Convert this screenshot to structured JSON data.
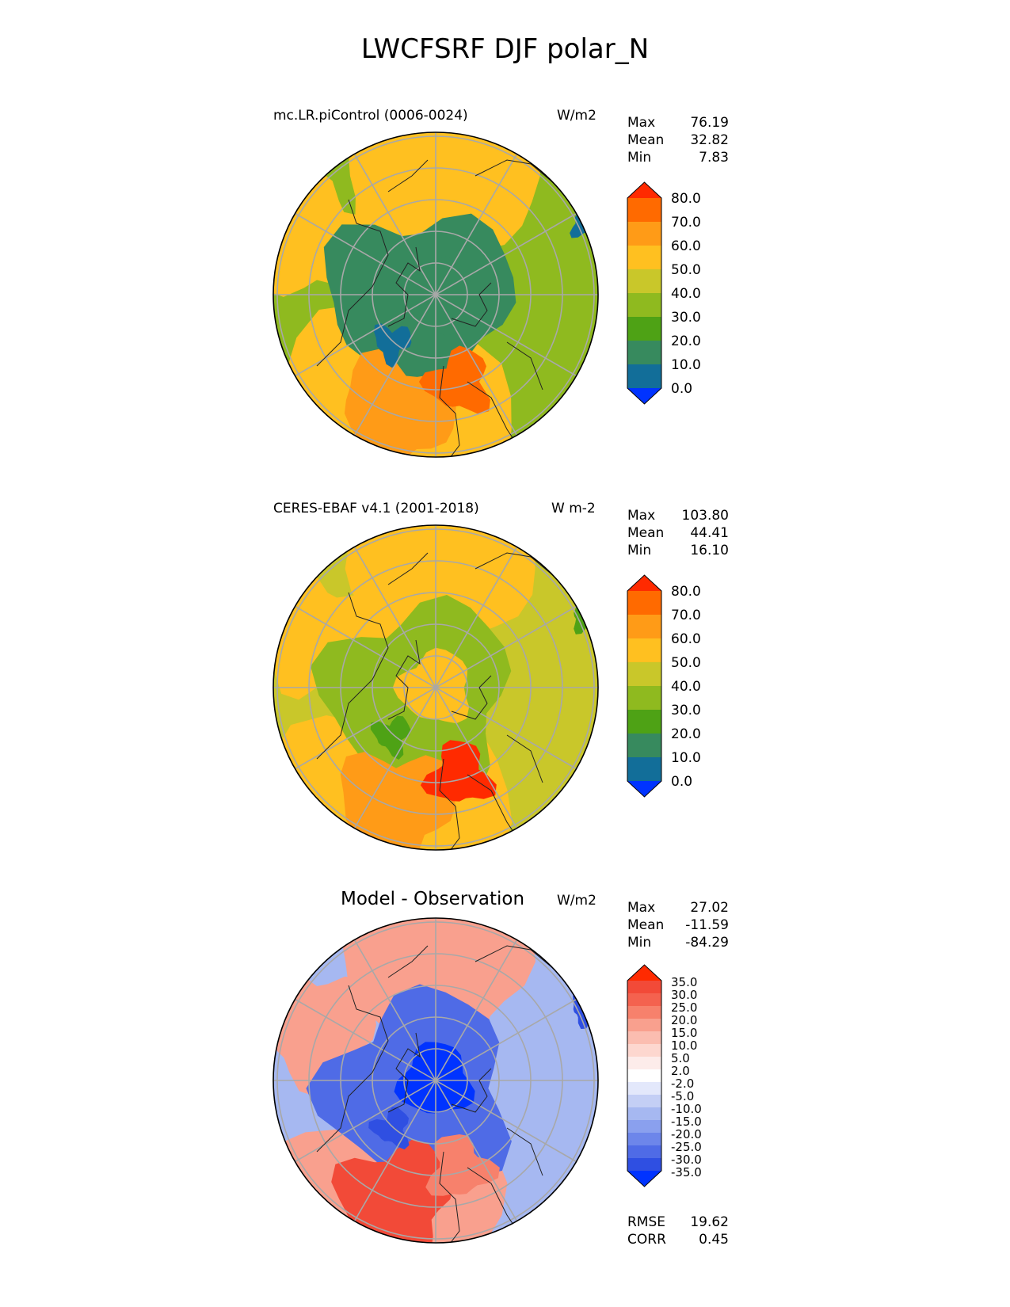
{
  "figure_title": "LWCFSRF DJF polar_N",
  "chart_data": [
    {
      "type": "polar-map",
      "title": "mc.LR.piControl (0006-0024)",
      "units": "W/m2",
      "stats": [
        {
          "label": "Max",
          "value": "76.19"
        },
        {
          "label": "Mean",
          "value": "32.82"
        },
        {
          "label": "Min",
          "value": "7.83"
        }
      ],
      "colorbar": {
        "levels": [
          "80.0",
          "70.0",
          "60.0",
          "50.0",
          "40.0",
          "30.0",
          "20.0",
          "10.0",
          "0.0"
        ],
        "colors": [
          "#ff2a00",
          "#ff6a00",
          "#ff9b17",
          "#ffc020",
          "#c9c72a",
          "#8fba1f",
          "#4ea215",
          "#378a5e",
          "#126e99",
          "#0033ff"
        ]
      },
      "regions": {
        "base": "#8fba1f",
        "outer": "#ffc020",
        "inner": "#378a5e",
        "core": "#378a5e",
        "warm": "#ff9b17",
        "accent": "#ff6a00",
        "cool": "#126e99"
      }
    },
    {
      "type": "polar-map",
      "title": "CERES-EBAF v4.1 (2001-2018)",
      "units": "W m-2",
      "stats": [
        {
          "label": "Max",
          "value": "103.80"
        },
        {
          "label": "Mean",
          "value": "44.41"
        },
        {
          "label": "Min",
          "value": "16.10"
        }
      ],
      "colorbar": {
        "levels": [
          "80.0",
          "70.0",
          "60.0",
          "50.0",
          "40.0",
          "30.0",
          "20.0",
          "10.0",
          "0.0"
        ],
        "colors": [
          "#ff2a00",
          "#ff6a00",
          "#ff9b17",
          "#ffc020",
          "#c9c72a",
          "#8fba1f",
          "#4ea215",
          "#378a5e",
          "#126e99",
          "#0033ff"
        ]
      },
      "regions": {
        "base": "#c9c72a",
        "outer": "#ffc020",
        "inner": "#8fba1f",
        "core": "#ffc020",
        "warm": "#ff9b17",
        "accent": "#ff2a00",
        "cool": "#4ea215"
      }
    },
    {
      "type": "polar-map",
      "title": "Model - Observation",
      "units": "W/m2",
      "stats": [
        {
          "label": "Max",
          "value": "27.02"
        },
        {
          "label": "Mean",
          "value": "-11.59"
        },
        {
          "label": "Min",
          "value": "-84.29"
        }
      ],
      "colorbar": {
        "levels": [
          "35.0",
          "30.0",
          "25.0",
          "20.0",
          "15.0",
          "10.0",
          "5.0",
          "2.0",
          "-2.0",
          "-5.0",
          "-10.0",
          "-15.0",
          "-20.0",
          "-25.0",
          "-30.0",
          "-35.0"
        ],
        "colors": [
          "#ff2a00",
          "#f24a38",
          "#f4624f",
          "#f7816c",
          "#f9a08e",
          "#fbbdb0",
          "#fdd7cf",
          "#fdecea",
          "#ffffff",
          "#e3e8fb",
          "#c4cff5",
          "#a6b8f1",
          "#8aa0ee",
          "#6d86ea",
          "#4f6be6",
          "#2f4fe2",
          "#0033ff"
        ]
      },
      "regions": {
        "base": "#a6b8f1",
        "outer": "#f9a08e",
        "inner": "#4f6be6",
        "core": "#0033ff",
        "warm": "#f24a38",
        "accent": "#f7816c",
        "cool": "#2f4fe2"
      }
    }
  ],
  "error_metrics": [
    {
      "label": "RMSE",
      "value": "19.62"
    },
    {
      "label": "CORR",
      "value": "0.45"
    }
  ]
}
